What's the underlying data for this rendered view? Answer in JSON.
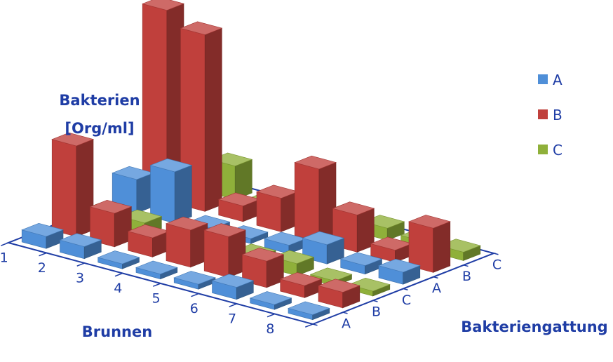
{
  "chart_data": {
    "type": "bar3d",
    "zlabel_lines": [
      "Bakterien",
      "[Org/ml]"
    ],
    "xlabel": "Brunnen",
    "ylabel": "Bakteriengattung",
    "x_categories": [
      "1",
      "2",
      "3",
      "4",
      "5",
      "6",
      "7",
      "8"
    ],
    "y_categories": [
      "A",
      "B",
      "C",
      "A",
      "B",
      "C"
    ],
    "legend": {
      "placement": "right",
      "entries": [
        "A",
        "B",
        "C"
      ]
    },
    "colors": {
      "A": "#4f8fd8",
      "B": "#c0403c",
      "C": "#8fb03a",
      "axis": "#1f3da5"
    },
    "series": [
      {
        "name": "A",
        "row": 0,
        "values": [
          2,
          2,
          0,
          0,
          0,
          2,
          0,
          0
        ]
      },
      {
        "name": "B",
        "row": 1,
        "values": [
          24,
          8,
          4,
          9,
          10,
          6,
          2,
          3
        ]
      },
      {
        "name": "C",
        "row": 2,
        "values": [
          1,
          2,
          0,
          0,
          1,
          2,
          0,
          0
        ]
      },
      {
        "name": "A",
        "row": 3,
        "values": [
          8,
          13,
          0,
          0,
          1,
          4,
          1,
          2
        ]
      },
      {
        "name": "B",
        "row": 4,
        "values": [
          52,
          48,
          3,
          8,
          19,
          9,
          2,
          11
        ]
      },
      {
        "name": "C",
        "row": 5,
        "values": [
          1,
          8,
          0,
          1,
          2,
          2,
          1,
          1
        ]
      }
    ]
  }
}
